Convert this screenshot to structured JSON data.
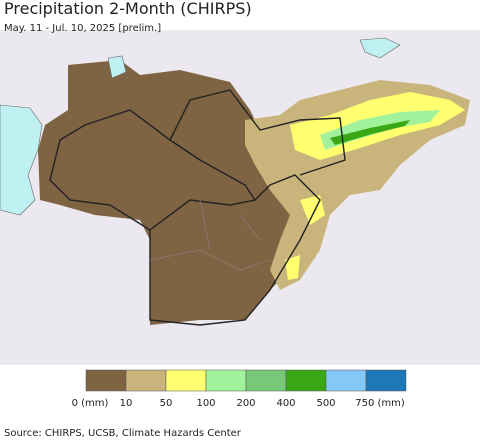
{
  "header": {
    "title": "Precipitation 2-Month (CHIRPS)",
    "subtitle": "May. 11 - Jul. 10, 2025 [prelim.]"
  },
  "legend": {
    "labels": [
      "0 (mm)",
      "10",
      "50",
      "100",
      "200",
      "400",
      "500",
      "750 (mm)"
    ],
    "colors": [
      "#7f6444",
      "#c9b57c",
      "#ffff70",
      "#a2f29c",
      "#78c878",
      "#3aa816",
      "#84c8f8",
      "#1e78b6"
    ]
  },
  "footer": {
    "source": "Source: CHIRPS, UCSB, Climate Hazards Center"
  }
}
